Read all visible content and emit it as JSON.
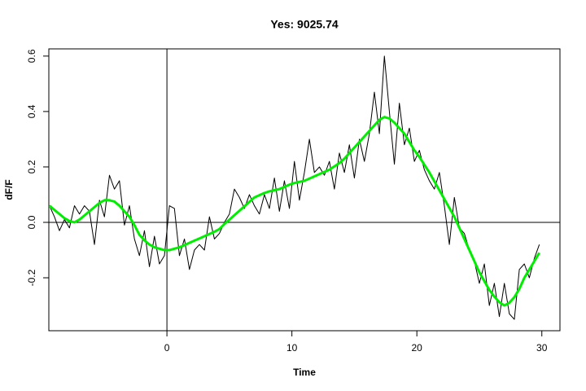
{
  "chart_data": {
    "type": "line",
    "title": "Yes: 9025.74",
    "x_label": "Time",
    "y_label": "dF/F",
    "x": [
      -9.4,
      -9.0,
      -8.6,
      -8.2,
      -7.8,
      -7.4,
      -7.0,
      -6.6,
      -6.2,
      -5.8,
      -5.4,
      -5.0,
      -4.6,
      -4.2,
      -3.8,
      -3.4,
      -3.0,
      -2.6,
      -2.2,
      -1.8,
      -1.4,
      -1.0,
      -0.6,
      -0.2,
      0.2,
      0.6,
      1.0,
      1.4,
      1.8,
      2.2,
      2.6,
      3.0,
      3.4,
      3.8,
      4.2,
      4.6,
      5.0,
      5.4,
      5.8,
      6.2,
      6.6,
      7.0,
      7.4,
      7.8,
      8.2,
      8.6,
      9.0,
      9.4,
      9.8,
      10.2,
      10.6,
      11.0,
      11.4,
      11.8,
      12.2,
      12.6,
      13.0,
      13.4,
      13.8,
      14.2,
      14.6,
      15.0,
      15.4,
      15.8,
      16.2,
      16.6,
      17.0,
      17.4,
      17.8,
      18.2,
      18.6,
      19.0,
      19.4,
      19.8,
      20.2,
      20.6,
      21.0,
      21.4,
      21.8,
      22.2,
      22.6,
      23.0,
      23.4,
      23.8,
      24.2,
      24.6,
      25.0,
      25.4,
      25.8,
      26.2,
      26.6,
      27.0,
      27.4,
      27.8,
      28.2,
      28.6,
      29.0,
      29.4,
      29.8
    ],
    "series": [
      {
        "color": "#000000",
        "width": 1,
        "values": [
          0.06,
          0.02,
          -0.03,
          0.01,
          -0.02,
          0.06,
          0.03,
          0.06,
          0.04,
          -0.08,
          0.08,
          0.02,
          0.17,
          0.12,
          0.15,
          -0.01,
          0.06,
          -0.06,
          -0.12,
          -0.03,
          -0.16,
          -0.05,
          -0.15,
          -0.12,
          0.06,
          0.05,
          -0.12,
          -0.06,
          -0.17,
          -0.1,
          -0.08,
          -0.1,
          0.02,
          -0.06,
          -0.04,
          0.0,
          0.03,
          0.12,
          0.09,
          0.05,
          0.1,
          0.06,
          0.03,
          0.1,
          0.05,
          0.16,
          0.04,
          0.15,
          0.05,
          0.22,
          0.08,
          0.18,
          0.3,
          0.18,
          0.2,
          0.17,
          0.22,
          0.12,
          0.25,
          0.18,
          0.28,
          0.16,
          0.3,
          0.22,
          0.32,
          0.47,
          0.32,
          0.6,
          0.4,
          0.21,
          0.43,
          0.28,
          0.34,
          0.22,
          0.26,
          0.19,
          0.15,
          0.12,
          0.18,
          0.06,
          -0.08,
          0.09,
          -0.02,
          -0.04,
          -0.1,
          -0.14,
          -0.22,
          -0.15,
          -0.3,
          -0.22,
          -0.34,
          -0.22,
          -0.33,
          -0.35,
          -0.17,
          -0.15,
          -0.2,
          -0.13,
          -0.08
        ]
      },
      {
        "color": "#00ee00",
        "width": 3,
        "values": [
          0.06,
          0.045,
          0.03,
          0.015,
          0.005,
          0.0,
          0.01,
          0.025,
          0.04,
          0.055,
          0.07,
          0.08,
          0.08,
          0.075,
          0.06,
          0.04,
          0.02,
          -0.01,
          -0.045,
          -0.065,
          -0.08,
          -0.09,
          -0.095,
          -0.1,
          -0.1,
          -0.095,
          -0.09,
          -0.082,
          -0.074,
          -0.066,
          -0.058,
          -0.05,
          -0.042,
          -0.034,
          -0.024,
          -0.006,
          0.01,
          0.026,
          0.042,
          0.058,
          0.074,
          0.09,
          0.098,
          0.106,
          0.112,
          0.116,
          0.12,
          0.128,
          0.136,
          0.142,
          0.146,
          0.15,
          0.158,
          0.166,
          0.174,
          0.182,
          0.19,
          0.202,
          0.214,
          0.23,
          0.25,
          0.27,
          0.29,
          0.31,
          0.33,
          0.35,
          0.37,
          0.38,
          0.375,
          0.36,
          0.34,
          0.32,
          0.29,
          0.26,
          0.236,
          0.208,
          0.18,
          0.148,
          0.116,
          0.084,
          0.052,
          0.02,
          -0.02,
          -0.06,
          -0.1,
          -0.14,
          -0.18,
          -0.212,
          -0.244,
          -0.268,
          -0.288,
          -0.3,
          -0.29,
          -0.27,
          -0.24,
          -0.2,
          -0.17,
          -0.14,
          -0.11
        ]
      }
    ],
    "xlim": [
      -9.45,
      31.45
    ],
    "ylim": [
      -0.391,
      0.626
    ],
    "xticks": [
      0,
      10,
      20,
      30
    ],
    "yticks": [
      -0.2,
      {
        "value": 0,
        "label": "0.0"
      },
      0.2,
      0.4,
      0.6
    ],
    "vline": 0,
    "hline": 0
  }
}
